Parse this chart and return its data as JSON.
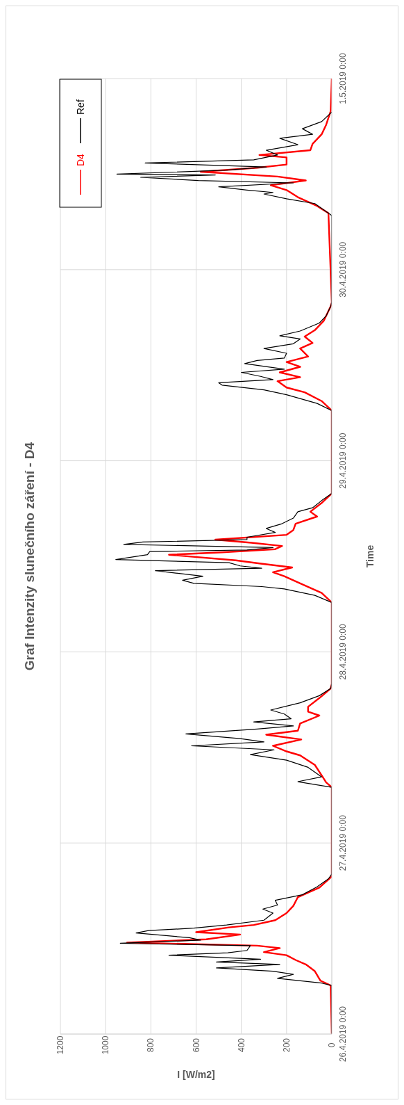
{
  "chart_data": {
    "type": "line",
    "orientation": "horizontal",
    "title": "Graf Intenzity slunečního záření - D4",
    "ylabel": "Time",
    "xlabel": "I [W/m2]",
    "ylim": [
      "2019-04-26T00:00",
      "2019-05-01T00:00"
    ],
    "yticks": [
      {
        "value": "2019-04-26T00:00",
        "label": "26.4.2019 0:00"
      },
      {
        "value": "2019-04-27T00:00",
        "label": "27.4.2019 0:00"
      },
      {
        "value": "2019-04-28T00:00",
        "label": "28.4.2019 0:00"
      },
      {
        "value": "2019-04-29T00:00",
        "label": "29.4.2019 0:00"
      },
      {
        "value": "2019-04-30T00:00",
        "label": "30.4.2019 0:00"
      },
      {
        "value": "2019-05-01T00:00",
        "label": "1.5.2019 0:00"
      }
    ],
    "xlim": [
      1200,
      0
    ],
    "xticks": [
      1200,
      1000,
      800,
      600,
      400,
      200,
      0
    ],
    "grid": true,
    "legend": "top left",
    "marker": "none",
    "line_style": "solid",
    "series": [
      {
        "name": "D4",
        "color": "#ff0000",
        "x": [
          "2019-04-26T00:00",
          "2019-04-26T06:06",
          "2019-04-26T06:42",
          "2019-04-26T07:54",
          "2019-04-26T08:45",
          "2019-04-26T09:18",
          "2019-04-26T09:54",
          "2019-04-26T10:18",
          "2019-04-26T10:48",
          "2019-04-26T11:06",
          "2019-04-26T11:30",
          "2019-04-26T11:54",
          "2019-04-26T12:30",
          "2019-04-26T12:48",
          "2019-04-26T13:24",
          "2019-04-26T13:42",
          "2019-04-26T14:18",
          "2019-04-26T15:12",
          "2019-04-26T16:06",
          "2019-04-26T17:12",
          "2019-04-26T18:24",
          "2019-04-26T19:48",
          "2019-04-27T07:00",
          "2019-04-27T07:36",
          "2019-04-27T08:30",
          "2019-04-27T09:48",
          "2019-04-27T11:00",
          "2019-04-27T11:30",
          "2019-04-27T12:12",
          "2019-04-27T13:00",
          "2019-04-27T13:36",
          "2019-04-27T14:06",
          "2019-04-27T15:00",
          "2019-04-27T16:00",
          "2019-04-27T16:30",
          "2019-04-27T17:06",
          "2019-04-27T18:12",
          "2019-04-27T19:24",
          "2019-04-27T20:00",
          "2019-04-28T06:12",
          "2019-04-28T07:24",
          "2019-04-28T08:36",
          "2019-04-28T09:30",
          "2019-04-28T10:00",
          "2019-04-28T10:36",
          "2019-04-28T11:06",
          "2019-04-28T11:30",
          "2019-04-28T12:12",
          "2019-04-28T12:30",
          "2019-04-28T12:54",
          "2019-04-28T13:18",
          "2019-04-28T13:42",
          "2019-04-28T14:06",
          "2019-04-28T14:42",
          "2019-04-28T15:18",
          "2019-04-28T16:06",
          "2019-04-28T17:00",
          "2019-04-28T17:36",
          "2019-04-28T18:42",
          "2019-04-28T19:54",
          "2019-04-29T06:18",
          "2019-04-29T07:30",
          "2019-04-29T08:36",
          "2019-04-29T09:12",
          "2019-04-29T10:00",
          "2019-04-29T10:30",
          "2019-04-29T11:06",
          "2019-04-29T11:48",
          "2019-04-29T12:24",
          "2019-04-29T13:06",
          "2019-04-29T14:06",
          "2019-04-29T14:48",
          "2019-04-29T15:36",
          "2019-04-29T16:24",
          "2019-04-29T17:36",
          "2019-04-29T19:24",
          "2019-04-29T19:54",
          "2019-04-30T07:06",
          "2019-04-30T08:00",
          "2019-04-30T09:06",
          "2019-04-30T10:00",
          "2019-04-30T10:36",
          "2019-04-30T11:12",
          "2019-04-30T11:42",
          "2019-04-30T12:18",
          "2019-04-30T12:48",
          "2019-04-30T13:12",
          "2019-04-30T14:06",
          "2019-04-30T14:24",
          "2019-04-30T15:00",
          "2019-04-30T15:48",
          "2019-04-30T17:00",
          "2019-04-30T18:12",
          "2019-04-30T19:54",
          "2019-05-01T00:00"
        ],
        "values": [
          0,
          5,
          50,
          75,
          115,
          160,
          200,
          300,
          230,
          330,
          905,
          555,
          405,
          600,
          455,
          345,
          250,
          200,
          170,
          150,
          55,
          0,
          0,
          25,
          45,
          75,
          140,
          200,
          260,
          135,
          290,
          150,
          140,
          55,
          105,
          105,
          55,
          5,
          0,
          0,
          45,
          140,
          210,
          260,
          175,
          320,
          425,
          720,
          485,
          250,
          220,
          355,
          515,
          200,
          170,
          160,
          65,
          95,
          45,
          0,
          0,
          45,
          120,
          200,
          240,
          140,
          230,
          140,
          200,
          105,
          140,
          85,
          120,
          75,
          35,
          5,
          0,
          15,
          65,
          150,
          200,
          270,
          115,
          240,
          580,
          330,
          200,
          200,
          320,
          95,
          85,
          45,
          25,
          5,
          0
        ]
      },
      {
        "name": "Ref",
        "color": "#000000",
        "x": [
          "2019-04-26T00:00",
          "2019-04-26T06:06",
          "2019-04-26T06:24",
          "2019-04-26T07:00",
          "2019-04-26T07:30",
          "2019-04-26T07:54",
          "2019-04-26T08:18",
          "2019-04-26T08:45",
          "2019-04-26T09:03",
          "2019-04-26T09:24",
          "2019-04-26T09:54",
          "2019-04-26T10:12",
          "2019-04-26T10:30",
          "2019-04-26T11:06",
          "2019-04-26T11:24",
          "2019-04-26T11:48",
          "2019-04-26T12:06",
          "2019-04-26T12:42",
          "2019-04-26T13:00",
          "2019-04-26T13:18",
          "2019-04-26T13:42",
          "2019-04-26T14:18",
          "2019-04-26T15:12",
          "2019-04-26T15:42",
          "2019-04-26T16:12",
          "2019-04-26T16:48",
          "2019-04-26T17:30",
          "2019-04-26T18:30",
          "2019-04-26T19:30",
          "2019-04-26T20:06",
          "2019-04-27T07:00",
          "2019-04-27T07:42",
          "2019-04-27T08:18",
          "2019-04-27T09:30",
          "2019-04-27T10:24",
          "2019-04-27T11:06",
          "2019-04-27T11:42",
          "2019-04-27T12:12",
          "2019-04-27T12:42",
          "2019-04-27T13:06",
          "2019-04-27T13:42",
          "2019-04-27T14:18",
          "2019-04-27T14:42",
          "2019-04-27T15:12",
          "2019-04-27T15:36",
          "2019-04-27T16:12",
          "2019-04-27T16:42",
          "2019-04-27T17:36",
          "2019-04-27T18:30",
          "2019-04-27T19:24",
          "2019-04-27T20:00",
          "2019-04-28T06:12",
          "2019-04-28T07:06",
          "2019-04-28T07:54",
          "2019-04-28T08:12",
          "2019-04-28T08:36",
          "2019-04-28T09:00",
          "2019-04-28T09:30",
          "2019-04-28T09:54",
          "2019-04-28T10:12",
          "2019-04-28T10:30",
          "2019-04-28T10:48",
          "2019-04-28T11:12",
          "2019-04-28T11:36",
          "2019-04-28T12:12",
          "2019-04-28T12:36",
          "2019-04-28T12:48",
          "2019-04-28T13:06",
          "2019-04-28T13:30",
          "2019-04-28T13:48",
          "2019-04-28T14:06",
          "2019-04-28T14:24",
          "2019-04-28T15:00",
          "2019-04-28T15:30",
          "2019-04-28T16:06",
          "2019-04-28T16:48",
          "2019-04-28T17:36",
          "2019-04-28T18:06",
          "2019-04-28T19:00",
          "2019-04-28T19:54",
          "2019-04-29T06:18",
          "2019-04-29T07:12",
          "2019-04-29T08:18",
          "2019-04-29T08:54",
          "2019-04-29T09:30",
          "2019-04-29T09:48",
          "2019-04-29T10:12",
          "2019-04-29T10:36",
          "2019-04-29T11:06",
          "2019-04-29T11:30",
          "2019-04-29T12:12",
          "2019-04-29T12:36",
          "2019-04-29T12:54",
          "2019-04-29T13:30",
          "2019-04-29T14:06",
          "2019-04-29T14:42",
          "2019-04-29T15:18",
          "2019-04-29T15:42",
          "2019-04-29T16:18",
          "2019-04-29T17:18",
          "2019-04-29T18:12",
          "2019-04-29T19:24",
          "2019-04-29T19:54",
          "2019-04-30T06:48",
          "2019-04-30T07:06",
          "2019-04-30T08:18",
          "2019-04-30T08:54",
          "2019-04-30T09:30",
          "2019-04-30T09:42",
          "2019-04-30T10:00",
          "2019-04-30T10:24",
          "2019-04-30T10:54",
          "2019-04-30T11:12",
          "2019-04-30T11:36",
          "2019-04-30T11:54",
          "2019-04-30T12:00",
          "2019-04-30T12:30",
          "2019-04-30T12:54",
          "2019-04-30T13:24",
          "2019-04-30T13:48",
          "2019-04-30T14:24",
          "2019-04-30T15:00",
          "2019-04-30T15:42",
          "2019-04-30T16:30",
          "2019-04-30T17:00",
          "2019-04-30T17:42",
          "2019-04-30T18:36",
          "2019-04-30T19:48"
        ],
        "values": [
          0,
          0,
          45,
          240,
          170,
          260,
          510,
          230,
          510,
          315,
          720,
          460,
          375,
          360,
          935,
          580,
          630,
          865,
          810,
          610,
          465,
          300,
          260,
          305,
          240,
          250,
          130,
          65,
          15,
          0,
          0,
          150,
          45,
          105,
          200,
          360,
          255,
          620,
          300,
          405,
          645,
          330,
          170,
          345,
          180,
          210,
          270,
          140,
          55,
          5,
          0,
          0,
          75,
          210,
          310,
          610,
          660,
          570,
          690,
          780,
          310,
          405,
          455,
          955,
          815,
          805,
          375,
          260,
          920,
          835,
          375,
          375,
          250,
          290,
          220,
          170,
          150,
          85,
          45,
          0,
          0,
          65,
          200,
          300,
          485,
          500,
          260,
          315,
          400,
          210,
          385,
          330,
          210,
          200,
          300,
          170,
          140,
          230,
          140,
          55,
          25,
          5,
          0,
          0,
          15,
          75,
          200,
          300,
          260,
          375,
          500,
          170,
          590,
          845,
          515,
          950,
          465,
          290,
          825,
          345,
          240,
          290,
          150,
          230,
          85,
          130,
          45,
          0
        ]
      }
    ]
  }
}
